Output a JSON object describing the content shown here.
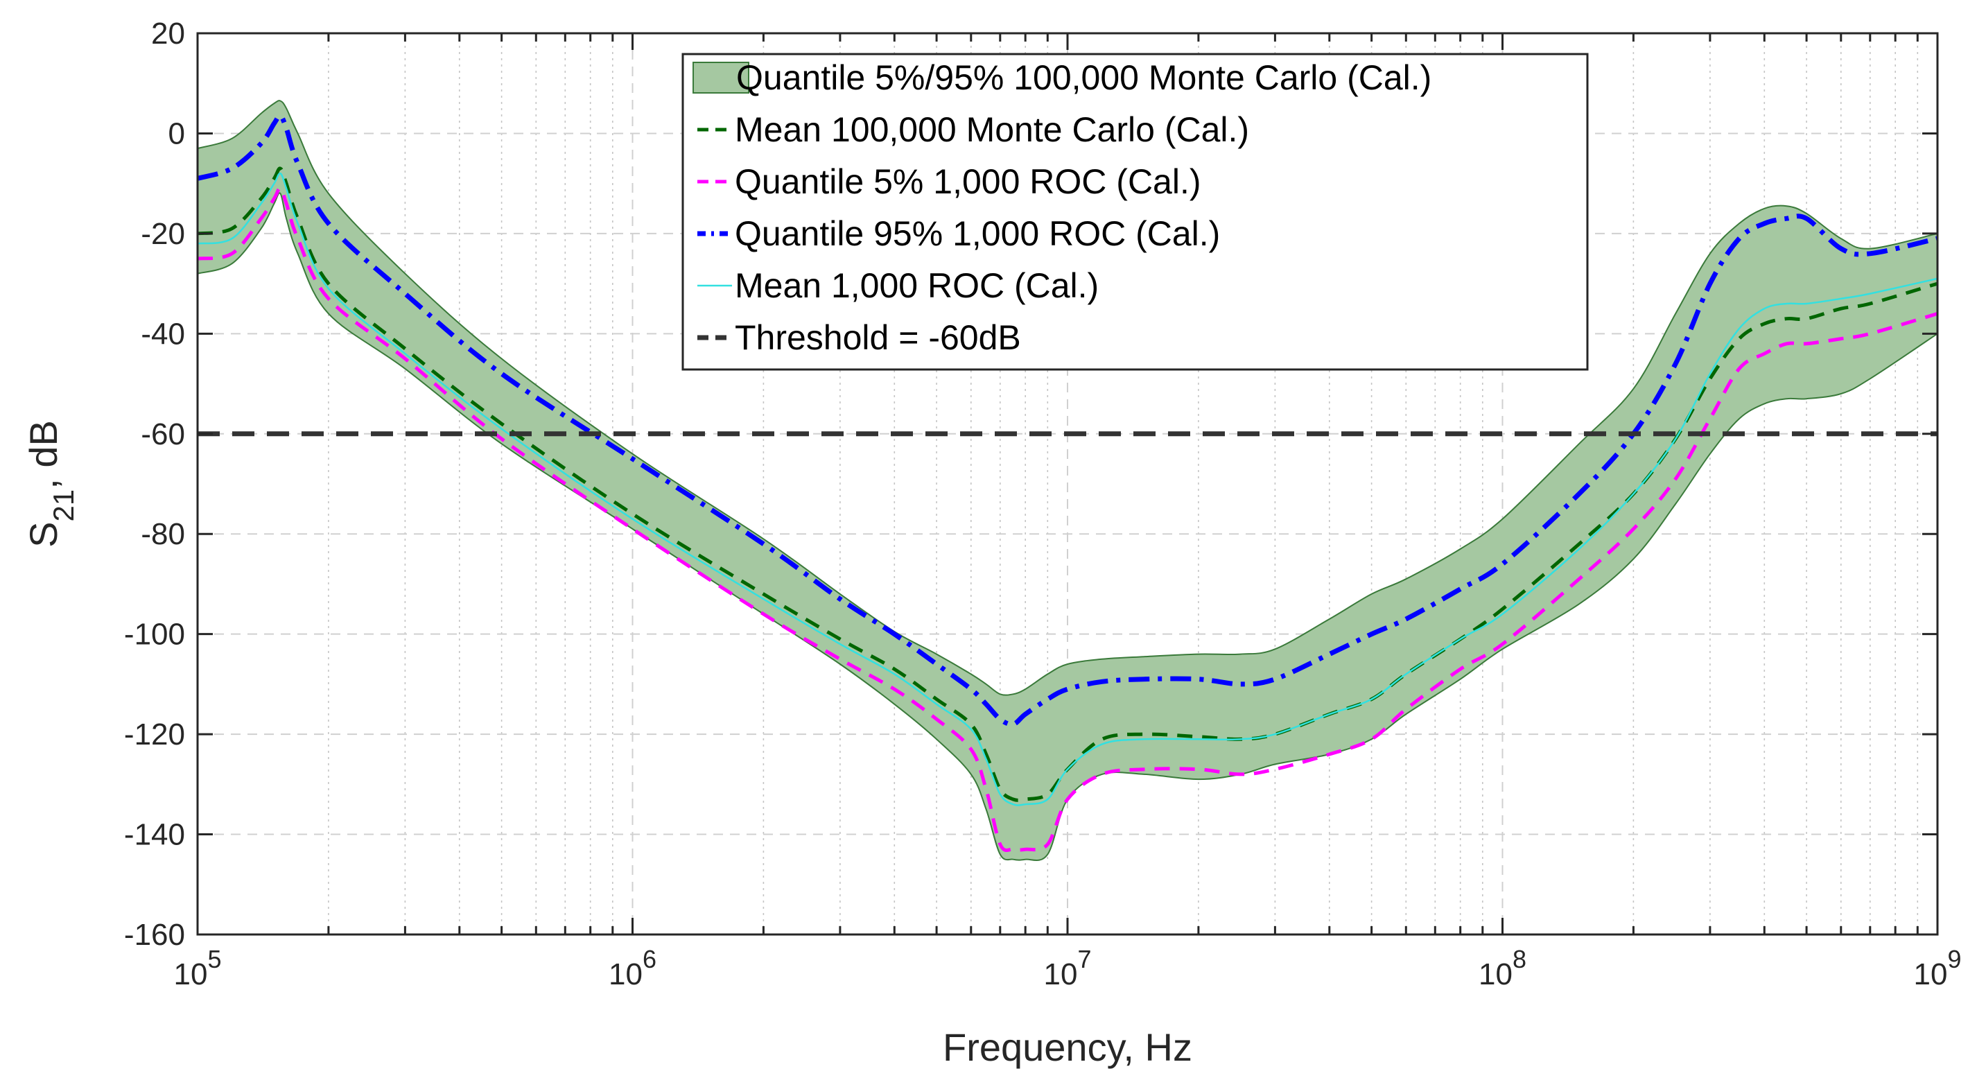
{
  "chart_data": {
    "type": "line",
    "xscale": "log",
    "xlabel": "Frequency, Hz",
    "ylabel": "S21, dB",
    "ylabel_main": "S",
    "ylabel_sub": "21",
    "ylabel_suffix": ", dB",
    "xlim": [
      100000,
      1000000000
    ],
    "ylim": [
      -160,
      20
    ],
    "grid": true,
    "legend_position": "top-center",
    "yticks": [
      20,
      0,
      -20,
      -40,
      -60,
      -80,
      -100,
      -120,
      -140,
      -160
    ],
    "ytick_labels": [
      "20",
      "0",
      "-20",
      "-40",
      "-60",
      "-80",
      "-100",
      "-120",
      "-140",
      "-160"
    ],
    "xticks": [
      100000,
      1000000,
      10000000,
      100000000,
      1000000000
    ],
    "xtick_labels": [
      {
        "base": "10",
        "exp": "5"
      },
      {
        "base": "10",
        "exp": "6"
      },
      {
        "base": "10",
        "exp": "7"
      },
      {
        "base": "10",
        "exp": "8"
      },
      {
        "base": "10",
        "exp": "9"
      }
    ],
    "threshold": -60,
    "x": [
      100000,
      120000,
      140000,
      150000,
      155000,
      160000,
      170000,
      200000,
      300000,
      500000,
      1000000,
      2000000,
      3000000,
      4000000,
      5000000,
      6000000,
      6500000,
      7000000,
      7500000,
      8000000,
      9000000,
      10000000,
      12000000,
      15000000,
      20000000,
      25000000,
      30000000,
      40000000,
      50000000,
      60000000,
      80000000,
      100000000,
      150000000,
      200000000,
      250000000,
      300000000,
      350000000,
      400000000,
      450000000,
      500000000,
      600000000,
      700000000,
      1000000000
    ],
    "band": {
      "name": "Quantile 5%/95% 100,000 Monte Carlo (Cal.)",
      "color": "#a5c8a1",
      "edge": "#3a7a3a",
      "upper": [
        -3,
        -1,
        4,
        6,
        6.5,
        5,
        0,
        -12,
        -28,
        -45,
        -64,
        -81,
        -92,
        -99.5,
        -104,
        -108,
        -110,
        -112,
        -112,
        -111,
        -108,
        -106,
        -105,
        -104.5,
        -104,
        -104,
        -103,
        -97,
        -92,
        -89,
        -83,
        -77,
        -62,
        -51,
        -36,
        -24,
        -18,
        -15,
        -14.5,
        -16,
        -21,
        -23,
        -20
      ],
      "lower": [
        -28,
        -26,
        -19,
        -14,
        -12,
        -17,
        -24,
        -36,
        -47,
        -62,
        -79,
        -96,
        -106,
        -114,
        -121,
        -128,
        -135,
        -144,
        -145,
        -145,
        -144,
        -133,
        -128,
        -128,
        -129,
        -128,
        -126,
        -124,
        -121,
        -116,
        -109,
        -103,
        -94,
        -85,
        -74,
        -64,
        -57,
        -54,
        -53,
        -53,
        -52,
        -49,
        -40
      ]
    },
    "series": [
      {
        "name": "Mean 100,000 Monte Carlo (Cal.)",
        "color": "#006600",
        "style": "dash",
        "width": 5,
        "values": [
          -20,
          -19,
          -13,
          -9,
          -7,
          -10,
          -17,
          -30,
          -43,
          -58,
          -76,
          -92,
          -101,
          -107,
          -113,
          -118,
          -124,
          -131,
          -133,
          -133,
          -132,
          -127,
          -121,
          -120,
          -120.5,
          -121,
          -120,
          -116,
          -113,
          -108,
          -101,
          -95,
          -82,
          -72,
          -61,
          -49,
          -41,
          -38,
          -37,
          -37,
          -35,
          -34,
          -30
        ]
      },
      {
        "name": "Quantile 5% 1,000 ROC (Cal.)",
        "color": "#ff00ff",
        "style": "dash",
        "width": 5,
        "values": [
          -25,
          -24,
          -17,
          -13,
          -11,
          -14,
          -21,
          -33,
          -45,
          -61,
          -79,
          -96,
          -105,
          -111,
          -117,
          -123,
          -131,
          -142,
          -143,
          -143,
          -142,
          -133,
          -128,
          -127,
          -127,
          -128,
          -127,
          -124,
          -121,
          -115,
          -107,
          -102,
          -89,
          -79,
          -69,
          -57,
          -47,
          -44,
          -42,
          -42,
          -41,
          -40,
          -36
        ]
      },
      {
        "name": "Quantile 95% 1,000 ROC (Cal.)",
        "color": "#0000ff",
        "style": "dashdot",
        "width": 7,
        "values": [
          -9,
          -7,
          -2,
          2,
          3.5,
          1,
          -6,
          -18,
          -32,
          -48,
          -65,
          -82,
          -93,
          -100,
          -106,
          -111,
          -114,
          -117,
          -118,
          -116,
          -113,
          -111,
          -109.5,
          -109,
          -109,
          -110,
          -109,
          -104,
          -100,
          -97,
          -91,
          -86,
          -72,
          -60,
          -46,
          -30,
          -21,
          -18,
          -17,
          -17,
          -23,
          -24,
          -21
        ]
      },
      {
        "name": "Mean 1,000 ROC (Cal.)",
        "color": "#33e0e0",
        "style": "solid",
        "width": 2.5,
        "values": [
          -22,
          -21,
          -14,
          -10,
          -8,
          -11,
          -18,
          -31,
          -44,
          -59,
          -77,
          -93,
          -102,
          -108,
          -114,
          -119,
          -125,
          -132,
          -134,
          -134,
          -133,
          -127,
          -122,
          -121,
          -121,
          -121,
          -120,
          -116,
          -113,
          -108,
          -101,
          -96,
          -83,
          -72,
          -61,
          -48,
          -39,
          -35,
          -34,
          -34,
          -33,
          -32,
          -29
        ]
      },
      {
        "name": "Threshold = -60dB",
        "color": "#333333",
        "style": "longdash",
        "width": 7,
        "constant": -60
      }
    ]
  }
}
